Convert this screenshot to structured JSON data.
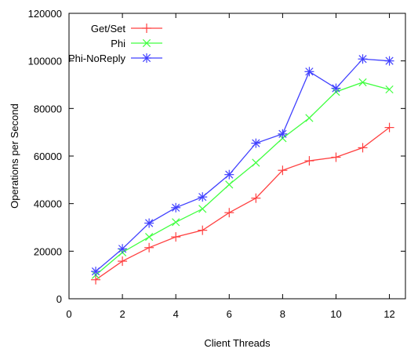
{
  "chart_data": {
    "type": "line",
    "title": "",
    "xlabel": "Client Threads",
    "ylabel": "Operations per Second",
    "xlim": [
      0,
      12.6
    ],
    "ylim": [
      0,
      120000
    ],
    "xticks": [
      0,
      2,
      4,
      6,
      8,
      10,
      12
    ],
    "yticks": [
      0,
      20000,
      40000,
      60000,
      80000,
      100000,
      120000
    ],
    "xtick_labels": [
      "0",
      "2",
      "4",
      "6",
      "8",
      "10",
      "12"
    ],
    "ytick_labels": [
      "0",
      "20000",
      "40000",
      "60000",
      "80000",
      "100000",
      "120000"
    ],
    "grid": false,
    "legend_position": "top-left",
    "x": [
      1,
      2,
      3,
      4,
      5,
      6,
      7,
      8,
      9,
      10,
      11,
      12
    ],
    "series": [
      {
        "name": "Get/Set",
        "color": "#ff4040",
        "marker": "plus",
        "values": [
          8000,
          15800,
          21500,
          26000,
          28800,
          36200,
          42300,
          54000,
          58000,
          59500,
          63500,
          72000
        ]
      },
      {
        "name": "Phi",
        "color": "#40ff40",
        "marker": "cross",
        "values": [
          10000,
          19500,
          26000,
          32200,
          37800,
          48000,
          57200,
          67500,
          76000,
          87000,
          91000,
          88000
        ]
      },
      {
        "name": "Phi-NoReply",
        "color": "#4040ff",
        "marker": "star",
        "values": [
          11500,
          21000,
          31800,
          38300,
          42800,
          52200,
          65400,
          69300,
          95500,
          88500,
          100800,
          100000
        ]
      }
    ]
  }
}
